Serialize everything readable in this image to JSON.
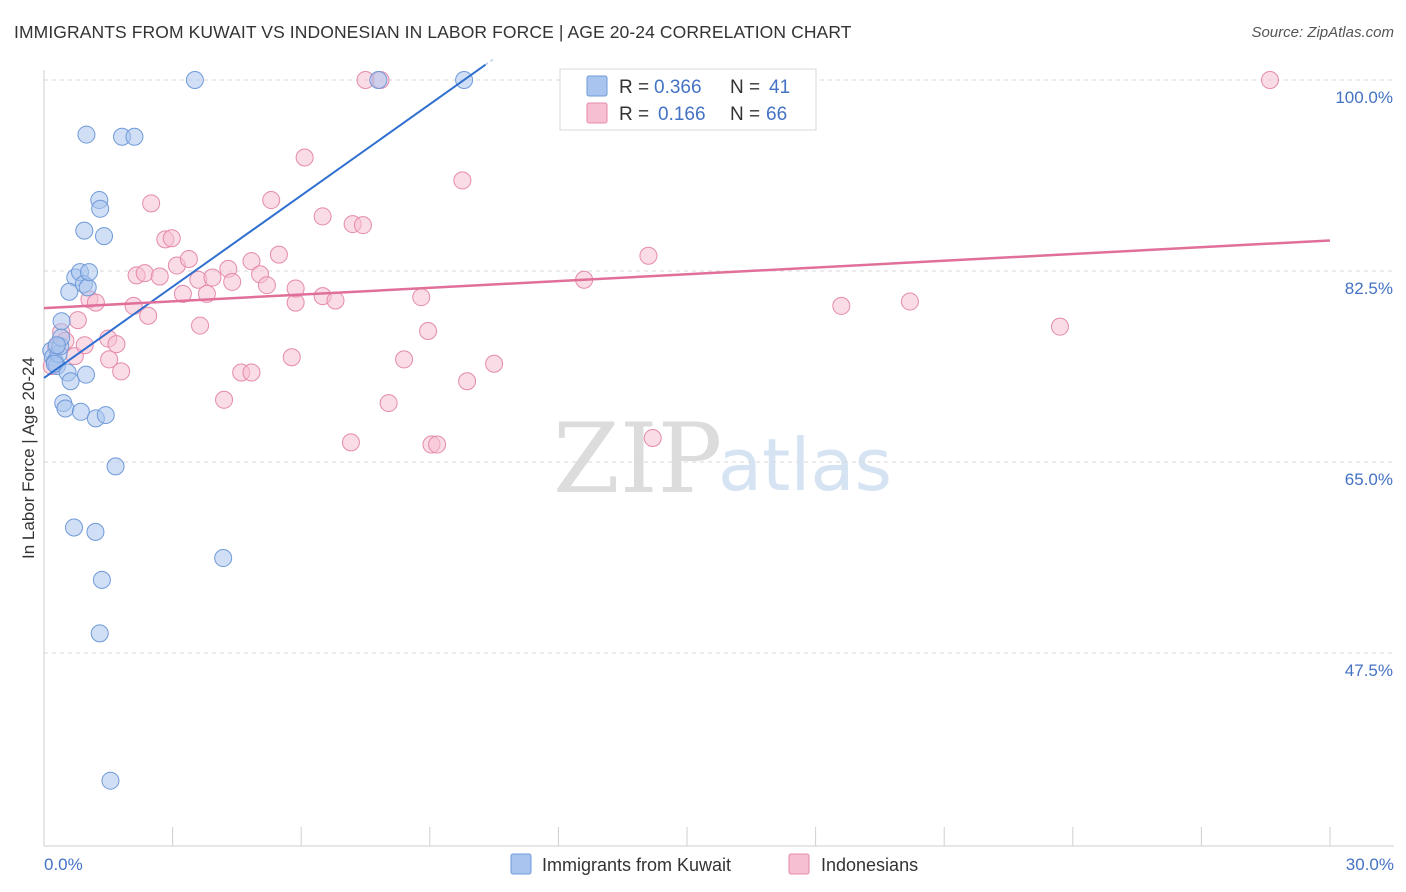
{
  "header": {
    "title": "IMMIGRANTS FROM KUWAIT VS INDONESIAN IN LABOR FORCE | AGE 20-24 CORRELATION CHART",
    "source": "Source: ZipAtlas.com"
  },
  "watermark": {
    "zip": "ZIP",
    "atlas": "atlas"
  },
  "colors": {
    "kuwait_fill": "#a9c4ef",
    "kuwait_stroke": "#6f9ad8",
    "kuwait_line": "#2f6fcf",
    "indo_fill": "#f6bfd2",
    "indo_stroke": "#e58aab",
    "indo_line": "#e0709a",
    "tick_text": "#4472c4",
    "grid": "#d9d9d9"
  },
  "legend": {
    "row1": {
      "r_label": "R =",
      "r_value": "0.366",
      "n_label": "N =",
      "n_value": "41"
    },
    "row2": {
      "r_label": "R =",
      "r_value": "0.166",
      "n_label": "N =",
      "n_value": "66"
    }
  },
  "chart_data": {
    "type": "scatter",
    "title": "IMMIGRANTS FROM KUWAIT VS INDONESIAN IN LABOR FORCE | AGE 20-24 CORRELATION CHART",
    "xlabel": "",
    "ylabel": "In Labor Force | Age 20-24",
    "xlim": [
      0,
      30
    ],
    "ylim": [
      32,
      104
    ],
    "x_tick_labels": [
      "0.0%",
      "30.0%"
    ],
    "y_ticks": [
      47.5,
      65.0,
      82.5,
      100.0
    ],
    "y_tick_labels": [
      "47.5%",
      "65.0%",
      "82.5%",
      "100.0%"
    ],
    "grid": true,
    "legend_position": "bottom-center",
    "series": [
      {
        "name": "Immigrants from Kuwait",
        "color": "#a9c4ef",
        "R": 0.366,
        "N": 41,
        "trend": {
          "x": [
            0.0,
            10.3
          ],
          "y": [
            72.7,
            101.4
          ]
        },
        "points": [
          [
            0.17,
            75.2
          ],
          [
            0.21,
            74.6
          ],
          [
            0.26,
            74.2
          ],
          [
            0.3,
            73.8
          ],
          [
            0.34,
            74.9
          ],
          [
            0.38,
            75.6
          ],
          [
            0.25,
            74.0
          ],
          [
            0.41,
            77.9
          ],
          [
            0.55,
            73.2
          ],
          [
            0.62,
            72.4
          ],
          [
            0.73,
            81.9
          ],
          [
            0.59,
            80.6
          ],
          [
            0.84,
            82.4
          ],
          [
            0.93,
            81.3
          ],
          [
            1.02,
            81.0
          ],
          [
            1.05,
            82.4
          ],
          [
            0.98,
            73.0
          ],
          [
            1.29,
            89.0
          ],
          [
            1.31,
            88.2
          ],
          [
            0.94,
            86.2
          ],
          [
            1.4,
            85.7
          ],
          [
            0.45,
            70.4
          ],
          [
            0.5,
            69.9
          ],
          [
            0.86,
            69.6
          ],
          [
            1.21,
            69.0
          ],
          [
            1.44,
            69.3
          ],
          [
            0.99,
            95.0
          ],
          [
            1.82,
            94.8
          ],
          [
            2.11,
            94.8
          ],
          [
            3.52,
            100.0
          ],
          [
            7.8,
            100.0
          ],
          [
            9.8,
            100.0
          ],
          [
            1.67,
            64.6
          ],
          [
            0.7,
            59.0
          ],
          [
            1.2,
            58.6
          ],
          [
            1.35,
            54.2
          ],
          [
            1.3,
            49.3
          ],
          [
            4.18,
            56.2
          ],
          [
            1.55,
            35.8
          ],
          [
            0.4,
            76.4
          ],
          [
            0.3,
            75.7
          ]
        ]
      },
      {
        "name": "Indonesians",
        "color": "#f6bfd2",
        "R": 0.166,
        "N": 66,
        "trend": {
          "x": [
            0.0,
            30.0
          ],
          "y": [
            79.1,
            85.3
          ]
        },
        "points": [
          [
            0.18,
            73.8
          ],
          [
            0.28,
            75.5
          ],
          [
            0.4,
            76.9
          ],
          [
            0.5,
            76.1
          ],
          [
            0.72,
            74.7
          ],
          [
            0.79,
            78.0
          ],
          [
            0.95,
            75.7
          ],
          [
            1.06,
            79.9
          ],
          [
            1.21,
            79.6
          ],
          [
            1.52,
            74.4
          ],
          [
            1.5,
            76.3
          ],
          [
            1.69,
            75.8
          ],
          [
            1.8,
            73.3
          ],
          [
            2.09,
            79.3
          ],
          [
            2.16,
            82.1
          ],
          [
            2.35,
            82.3
          ],
          [
            2.43,
            78.4
          ],
          [
            2.5,
            88.7
          ],
          [
            2.7,
            82.0
          ],
          [
            2.83,
            85.4
          ],
          [
            2.98,
            85.5
          ],
          [
            3.1,
            83.0
          ],
          [
            3.24,
            80.4
          ],
          [
            3.38,
            83.6
          ],
          [
            3.6,
            81.7
          ],
          [
            3.64,
            77.5
          ],
          [
            3.8,
            80.4
          ],
          [
            3.93,
            81.9
          ],
          [
            4.2,
            70.7
          ],
          [
            4.3,
            82.7
          ],
          [
            4.39,
            81.5
          ],
          [
            4.6,
            73.2
          ],
          [
            4.84,
            73.2
          ],
          [
            4.84,
            83.4
          ],
          [
            5.04,
            82.2
          ],
          [
            5.2,
            81.2
          ],
          [
            5.3,
            89.0
          ],
          [
            5.48,
            84.0
          ],
          [
            5.78,
            74.6
          ],
          [
            5.87,
            79.6
          ],
          [
            5.87,
            80.9
          ],
          [
            6.08,
            92.9
          ],
          [
            6.5,
            87.5
          ],
          [
            6.5,
            80.2
          ],
          [
            6.8,
            79.8
          ],
          [
            7.2,
            86.8
          ],
          [
            7.44,
            86.7
          ],
          [
            7.16,
            66.8
          ],
          [
            7.5,
            100.0
          ],
          [
            7.85,
            100.0
          ],
          [
            8.04,
            70.4
          ],
          [
            8.4,
            74.4
          ],
          [
            8.8,
            80.1
          ],
          [
            8.96,
            77.0
          ],
          [
            9.04,
            66.6
          ],
          [
            9.17,
            66.6
          ],
          [
            9.76,
            90.8
          ],
          [
            9.87,
            72.4
          ],
          [
            10.5,
            74.0
          ],
          [
            14.2,
            67.2
          ],
          [
            12.6,
            81.7
          ],
          [
            14.1,
            83.9
          ],
          [
            18.6,
            79.3
          ],
          [
            20.2,
            79.7
          ],
          [
            23.7,
            77.4
          ],
          [
            28.6,
            100.0
          ]
        ]
      }
    ]
  }
}
